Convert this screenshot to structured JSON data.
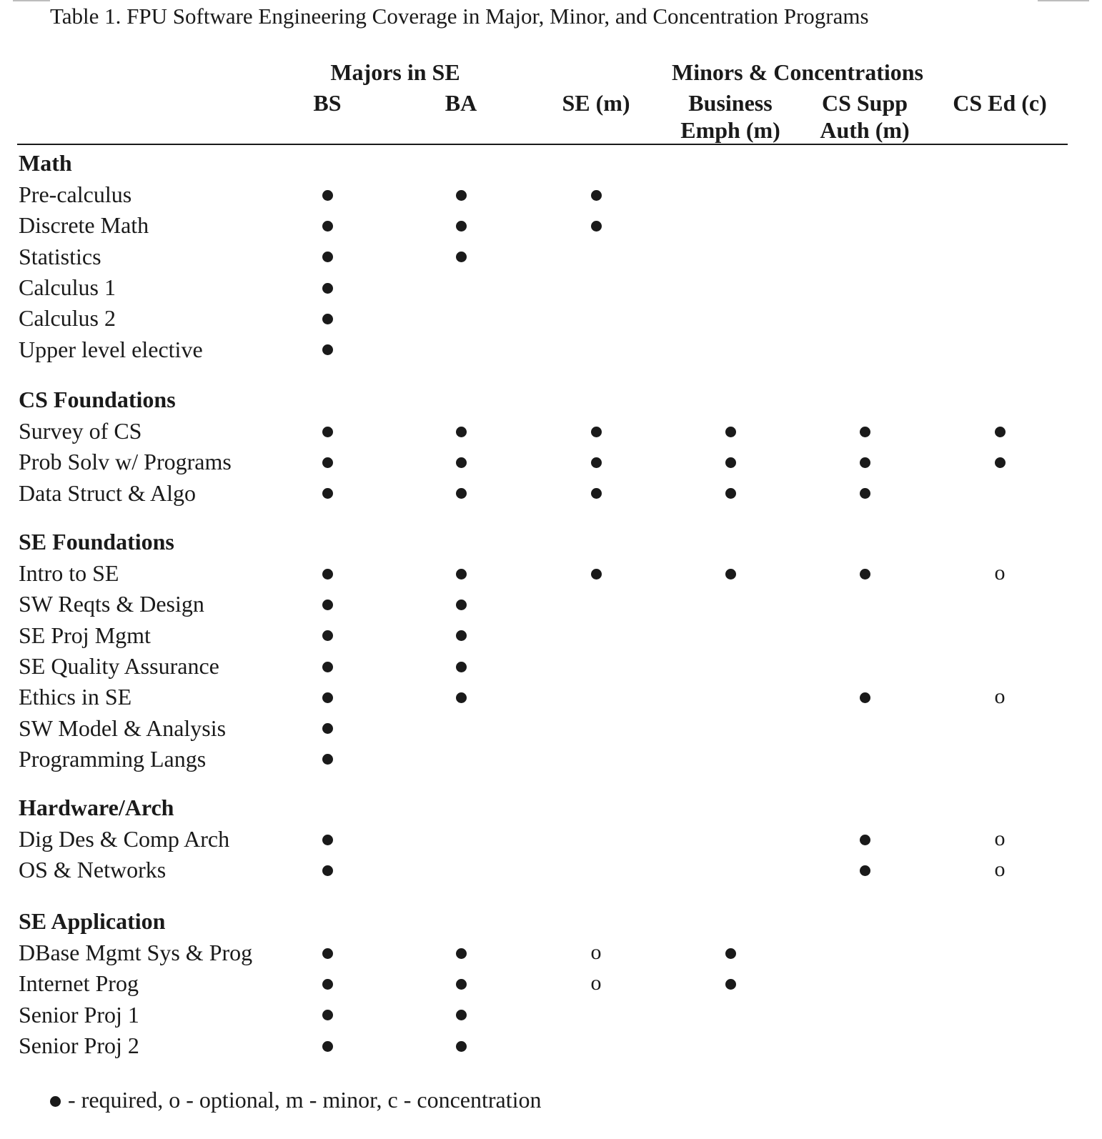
{
  "caption": "Table 1. FPU Software Engineering Coverage in Major, Minor, and Concentration Programs",
  "group_headers": [
    "Majors in SE",
    "Minors & Concentrations"
  ],
  "columns": [
    {
      "line1": "BS",
      "line2": ""
    },
    {
      "line1": "BA",
      "line2": ""
    },
    {
      "line1": "SE (m)",
      "line2": ""
    },
    {
      "line1": "Business",
      "line2": "Emph (m)"
    },
    {
      "line1": "CS Supp",
      "line2": "Auth (m)"
    },
    {
      "line1": "CS Ed (c)",
      "line2": ""
    }
  ],
  "sections": [
    {
      "title": "Math",
      "rows": [
        {
          "label": "Pre-calculus",
          "marks": [
            "required",
            "required",
            "required",
            "",
            "",
            ""
          ]
        },
        {
          "label": "Discrete Math",
          "marks": [
            "required",
            "required",
            "required",
            "",
            "",
            ""
          ]
        },
        {
          "label": "Statistics",
          "marks": [
            "required",
            "required",
            "",
            "",
            "",
            ""
          ]
        },
        {
          "label": "Calculus 1",
          "marks": [
            "required",
            "",
            "",
            "",
            "",
            ""
          ]
        },
        {
          "label": "Calculus 2",
          "marks": [
            "required",
            "",
            "",
            "",
            "",
            ""
          ]
        },
        {
          "label": "Upper level elective",
          "marks": [
            "required",
            "",
            "",
            "",
            "",
            ""
          ]
        }
      ]
    },
    {
      "title": "CS Foundations",
      "rows": [
        {
          "label": "Survey of CS",
          "marks": [
            "required",
            "required",
            "required",
            "required",
            "required",
            "required"
          ]
        },
        {
          "label": "Prob Solv w/ Programs",
          "marks": [
            "required",
            "required",
            "required",
            "required",
            "required",
            "required"
          ]
        },
        {
          "label": "Data Struct & Algo",
          "marks": [
            "required",
            "required",
            "required",
            "required",
            "required",
            ""
          ]
        }
      ]
    },
    {
      "title": "SE Foundations",
      "rows": [
        {
          "label": "Intro to SE",
          "marks": [
            "required",
            "required",
            "required",
            "required",
            "required",
            "optional"
          ]
        },
        {
          "label": "SW Reqts & Design",
          "marks": [
            "required",
            "required",
            "",
            "",
            "",
            ""
          ]
        },
        {
          "label": "SE Proj Mgmt",
          "marks": [
            "required",
            "required",
            "",
            "",
            "",
            ""
          ]
        },
        {
          "label": "SE Quality Assurance",
          "marks": [
            "required",
            "required",
            "",
            "",
            "",
            ""
          ]
        },
        {
          "label": "Ethics in SE",
          "marks": [
            "required",
            "required",
            "",
            "",
            "required",
            "optional"
          ]
        },
        {
          "label": "SW Model & Analysis",
          "marks": [
            "required",
            "",
            "",
            "",
            "",
            ""
          ]
        },
        {
          "label": "Programming Langs",
          "marks": [
            "required",
            "",
            "",
            "",
            "",
            ""
          ]
        }
      ]
    },
    {
      "title": "Hardware/Arch",
      "rows": [
        {
          "label": "Dig Des & Comp Arch",
          "marks": [
            "required",
            "",
            "",
            "",
            "required",
            "optional"
          ]
        },
        {
          "label": "OS & Networks",
          "marks": [
            "required",
            "",
            "",
            "",
            "required",
            "optional"
          ]
        }
      ]
    },
    {
      "title": "SE Application",
      "rows": [
        {
          "label": "DBase Mgmt Sys & Prog",
          "marks": [
            "required",
            "required",
            "optional",
            "required",
            "",
            ""
          ]
        },
        {
          "label": "Internet Prog",
          "marks": [
            "required",
            "required",
            "optional",
            "required",
            "",
            ""
          ]
        },
        {
          "label": "Senior Proj 1",
          "marks": [
            "required",
            "required",
            "",
            "",
            "",
            ""
          ]
        },
        {
          "label": "Senior Proj 2",
          "marks": [
            "required",
            "required",
            "",
            "",
            "",
            ""
          ]
        }
      ]
    }
  ],
  "optional_symbol": "o",
  "legend": "- required, o - optional, m - minor, c - concentration"
}
